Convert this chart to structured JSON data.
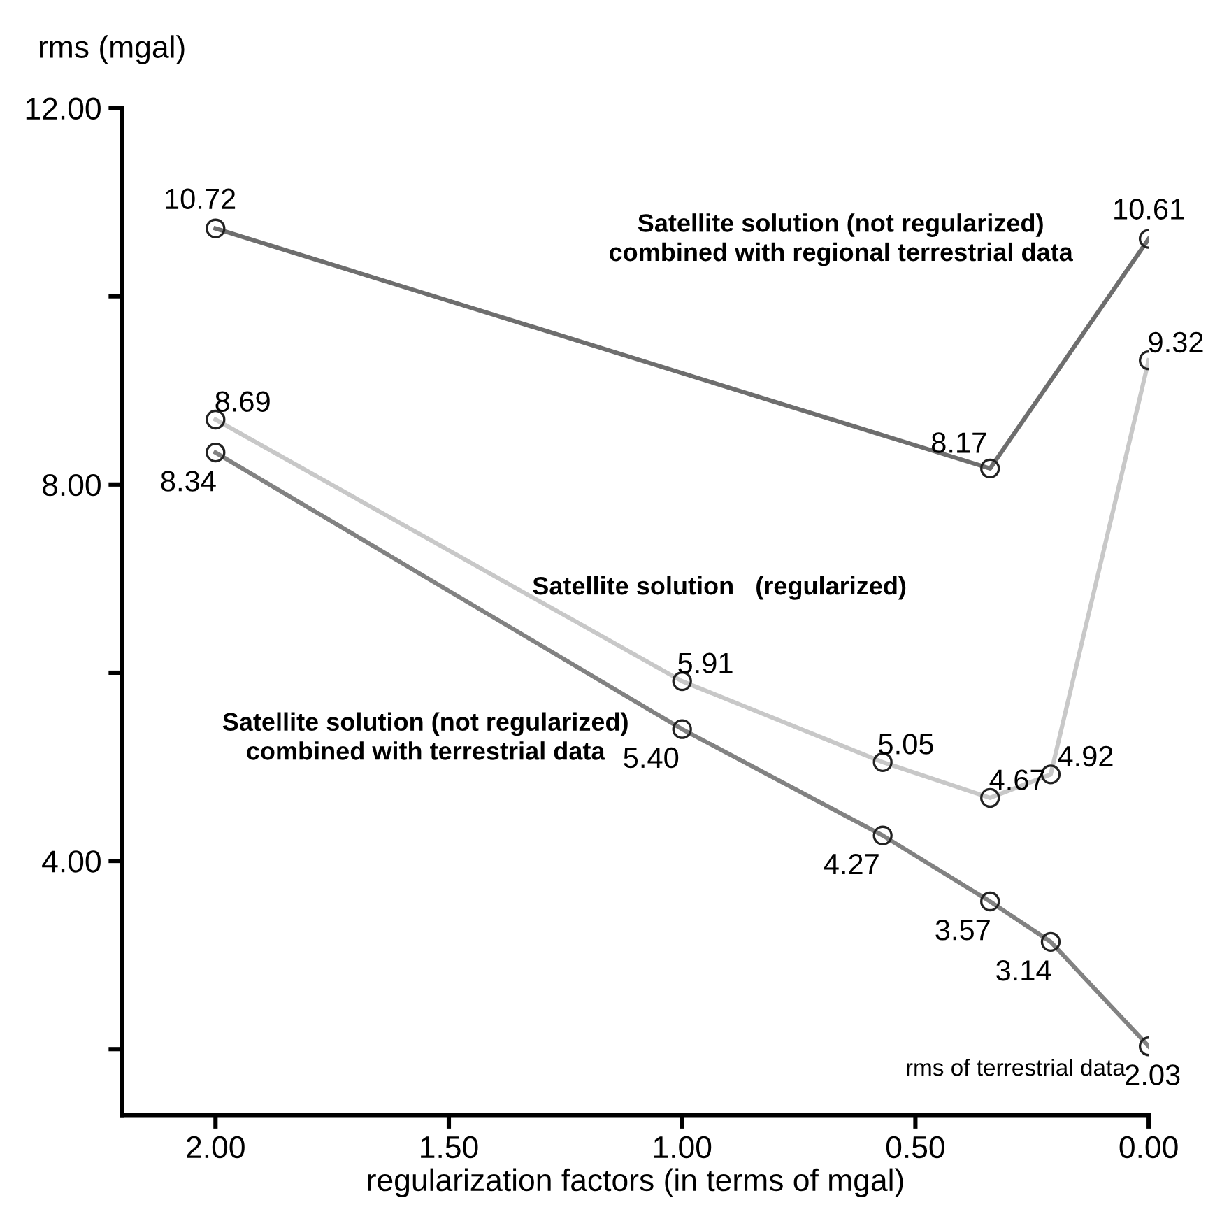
{
  "chart_data": {
    "type": "line",
    "xlabel": "regularization factors (in terms of mgal)",
    "ylabel": "rms (mgal)",
    "series": [
      {
        "name": "Satellite solution (not regularized)\ncombined with regional terrestrial data",
        "color": "#6e6e6e",
        "x": [
          2,
          0.34,
          0
        ],
        "values": [
          10.72,
          8.17,
          10.61
        ],
        "value_labels": [
          "10.72",
          "8.17",
          "10.61"
        ]
      },
      {
        "name": "Satellite solution   (regularized)",
        "color": "#c8c8c8",
        "x": [
          2,
          1,
          0.57,
          0.34,
          0.21,
          0
        ],
        "values": [
          8.69,
          5.91,
          5.05,
          4.67,
          4.92,
          9.32
        ],
        "value_labels": [
          "8.69",
          "5.91",
          "5.05",
          "4.67",
          "4.92",
          "9.32"
        ]
      },
      {
        "name": "Satellite solution (not regularized)\ncombined with terrestrial data",
        "color": "#828282",
        "x": [
          2,
          1,
          0.57,
          0.34,
          0.21,
          0
        ],
        "values": [
          8.34,
          5.4,
          4.27,
          3.57,
          3.14,
          2.03
        ],
        "value_labels": [
          "8.34",
          "5.40",
          "4.27",
          "3.57",
          "3.14",
          "2.03"
        ]
      }
    ],
    "xlim": [
      2.2,
      0
    ],
    "xticks": [
      {
        "value": 2,
        "label": "2.00"
      },
      {
        "value": 1.5,
        "label": "1.50"
      },
      {
        "value": 1,
        "label": "1.00"
      },
      {
        "value": 0.5,
        "label": "0.50"
      },
      {
        "value": 0,
        "label": "0.00"
      }
    ],
    "ylim": [
      1.3,
      12
    ],
    "yticks": [
      {
        "value": 2,
        "label": null
      },
      {
        "value": 4,
        "label": "4.00"
      },
      {
        "value": 6,
        "label": null
      },
      {
        "value": 8,
        "label": "8.00"
      },
      {
        "value": 10,
        "label": null
      },
      {
        "value": 12,
        "label": "12.00"
      }
    ],
    "marker": "circle",
    "line_style": "solid",
    "grid": false,
    "legend": false,
    "annotations": [
      {
        "text": "rms of terrestrial data",
        "x": 0,
        "y": 2.03
      }
    ]
  }
}
